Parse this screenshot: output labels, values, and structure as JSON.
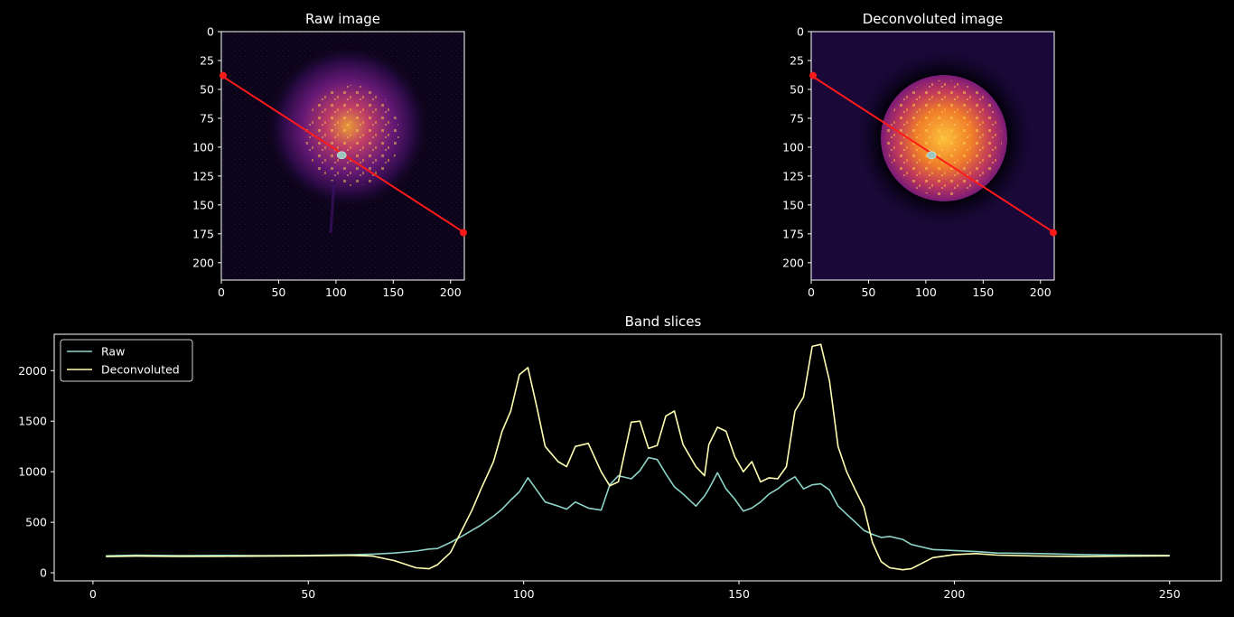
{
  "panels": {
    "raw": {
      "title": "Raw image",
      "xticks": [
        0,
        50,
        100,
        150,
        200
      ],
      "yticks": [
        0,
        25,
        50,
        75,
        100,
        125,
        150,
        175,
        200
      ],
      "xlim": [
        0,
        212
      ],
      "ylim": [
        215,
        0
      ],
      "colormap": "inferno",
      "band_line": {
        "x": [
          0,
          212
        ],
        "y": [
          38,
          174
        ],
        "color": "#ff1a1a"
      },
      "center_point": {
        "x": 105,
        "y": 107
      },
      "image_label": "Raw image"
    },
    "deconv": {
      "title": "Deconvoluted image",
      "xticks": [
        0,
        50,
        100,
        150,
        200
      ],
      "yticks": [
        0,
        25,
        50,
        75,
        100,
        125,
        150,
        175,
        200
      ],
      "xlim": [
        0,
        212
      ],
      "ylim": [
        215,
        0
      ],
      "colormap": "inferno",
      "band_line": {
        "x": [
          0,
          212
        ],
        "y": [
          38,
          174
        ],
        "color": "#ff1a1a"
      },
      "center_point": {
        "x": 105,
        "y": 107
      },
      "image_label": "Deconvoluted image"
    }
  },
  "chart_data": {
    "type": "line",
    "title": "Band slices",
    "xlabel": "",
    "ylabel": "",
    "xlim": [
      -9,
      262
    ],
    "ylim": [
      -80,
      2360
    ],
    "xticks": [
      0,
      50,
      100,
      150,
      200,
      250
    ],
    "yticks": [
      0,
      500,
      1000,
      1500,
      2000
    ],
    "legend": "top-left",
    "x": [
      3,
      10,
      20,
      30,
      40,
      50,
      60,
      65,
      70,
      75,
      78,
      80,
      83,
      86,
      88,
      90,
      93,
      95,
      97,
      99,
      101,
      103,
      105,
      108,
      110,
      112,
      115,
      118,
      120,
      122,
      125,
      127,
      129,
      131,
      133,
      135,
      137,
      140,
      142,
      143,
      145,
      147,
      149,
      151,
      153,
      155,
      157,
      159,
      161,
      163,
      165,
      167,
      169,
      171,
      173,
      175,
      177,
      179,
      181,
      183,
      185,
      188,
      190,
      195,
      200,
      205,
      210,
      220,
      230,
      240,
      250
    ],
    "series": [
      {
        "name": "Raw",
        "color": "#8dd3c7",
        "values": [
          168,
          175,
          170,
          172,
          170,
          172,
          178,
          185,
          195,
          215,
          235,
          240,
          300,
          370,
          420,
          470,
          560,
          630,
          720,
          800,
          940,
          820,
          700,
          660,
          630,
          700,
          640,
          620,
          870,
          960,
          930,
          1010,
          1140,
          1120,
          980,
          850,
          780,
          660,
          760,
          830,
          990,
          830,
          730,
          610,
          640,
          700,
          780,
          830,
          900,
          950,
          830,
          870,
          880,
          820,
          660,
          580,
          500,
          420,
          380,
          350,
          360,
          330,
          280,
          230,
          220,
          210,
          195,
          190,
          180,
          175,
          172
        ]
      },
      {
        "name": "Deconvoluted",
        "color": "#ffffb3",
        "values": [
          160,
          165,
          162,
          163,
          165,
          168,
          172,
          165,
          120,
          50,
          40,
          80,
          200,
          450,
          620,
          820,
          1100,
          1400,
          1600,
          1960,
          2030,
          1650,
          1250,
          1100,
          1050,
          1250,
          1280,
          1000,
          860,
          900,
          1490,
          1500,
          1230,
          1260,
          1550,
          1600,
          1270,
          1050,
          960,
          1270,
          1440,
          1400,
          1150,
          1000,
          1100,
          900,
          940,
          930,
          1050,
          1600,
          1740,
          2240,
          2260,
          1900,
          1250,
          1000,
          820,
          650,
          300,
          110,
          50,
          30,
          40,
          150,
          180,
          190,
          175,
          165,
          160,
          165,
          168
        ]
      }
    ]
  }
}
